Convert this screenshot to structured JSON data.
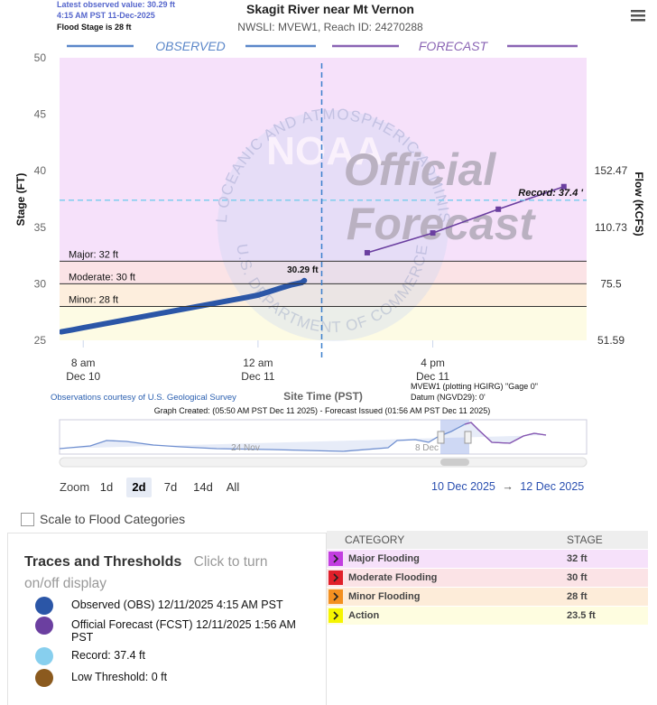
{
  "header": {
    "latest": "Latest observed value: 30.29 ft",
    "latest_time": "4:15 AM PST 11-Dec-2025",
    "flood_stage": "Flood Stage is 28 ft"
  },
  "chart_data": {
    "type": "line",
    "title": "Skagit River near Mt Vernon",
    "subtitle": "NWSLI: MVEW1, Reach ID: 24270288",
    "y_label": "Stage (FT)",
    "y2_label": "Flow (KCFS)",
    "x_label": "Site Time (PST)",
    "observed_label": "OBSERVED",
    "forecast_label": "FORECAST",
    "xlim": [
      "2025-12-10T05:50",
      "2025-12-12T06:05"
    ],
    "xticks": [
      {
        "value": "2025-12-10T08:00",
        "label": [
          "8 am",
          "Dec 10"
        ]
      },
      {
        "value": "2025-12-11T00:00",
        "label": [
          "12 am",
          "Dec 11"
        ]
      },
      {
        "value": "2025-12-11T16:00",
        "label": [
          "4 pm",
          "Dec 11"
        ]
      }
    ],
    "ylim": [
      25,
      50
    ],
    "yticks": [
      25,
      30,
      35,
      40,
      45,
      50
    ],
    "flow_ticks": [
      {
        "stage": 40,
        "flow": 152.47
      },
      {
        "stage": 35,
        "flow": 110.73
      },
      {
        "stage": 30,
        "flow": 75.5
      },
      {
        "stage": 25,
        "flow": 51.59
      }
    ],
    "plot_background": "#fdfbe4",
    "thresholds": [
      {
        "value": 32,
        "label": "Major: 32 ft",
        "band_color": "#f6e1fa"
      },
      {
        "value": 30,
        "label": "Moderate: 30 ft",
        "band_color": "#fbe3e6"
      },
      {
        "value": 28,
        "label": "Minor: 28 ft",
        "band_color": "#fdeedd"
      }
    ],
    "record": {
      "value": 37.4,
      "label": "Record: 37.4 '",
      "color": "#7fcdee"
    },
    "now": "2025-12-11T05:50",
    "series": [
      {
        "name": "Observed (OBS) 12/11/2025 4:15 AM PST",
        "color": "#2b56a7",
        "x": [
          "2025-12-10T06:00",
          "2025-12-10T07:00",
          "2025-12-10T08:00",
          "2025-12-10T09:00",
          "2025-12-10T10:00",
          "2025-12-10T11:00",
          "2025-12-10T12:00",
          "2025-12-10T13:00",
          "2025-12-10T14:00",
          "2025-12-10T15:00",
          "2025-12-10T16:00",
          "2025-12-10T17:00",
          "2025-12-10T18:00",
          "2025-12-10T19:00",
          "2025-12-10T20:00",
          "2025-12-10T21:00",
          "2025-12-10T22:00",
          "2025-12-10T23:00",
          "2025-12-11T00:00",
          "2025-12-11T01:00",
          "2025-12-11T02:00",
          "2025-12-11T03:00",
          "2025-12-11T04:00",
          "2025-12-11T04:15"
        ],
        "values": [
          25.75,
          25.93,
          26.11,
          26.29,
          26.47,
          26.65,
          26.83,
          27.01,
          27.19,
          27.37,
          27.55,
          27.73,
          27.91,
          28.09,
          28.27,
          28.45,
          28.63,
          28.81,
          29.0,
          29.3,
          29.6,
          29.9,
          30.1,
          30.29
        ],
        "last_label": "30.29 ft"
      },
      {
        "name": "Official Forecast (FCST) 12/11/2025 1:56 AM PST",
        "color": "#6b3fa0",
        "x": [
          "2025-12-11T10:00",
          "2025-12-11T16:00",
          "2025-12-11T22:00",
          "2025-12-12T04:00"
        ],
        "values": [
          32.75,
          34.5,
          36.6,
          38.6
        ]
      }
    ],
    "notes": {
      "credit": "Observations courtesy of U.S. Geological Survey",
      "gage": "MVEW1 (plotting HGIRG) \"Gage 0\"",
      "datum": "Datum (NGVD29): 0'",
      "created": "Graph Created: (05:50 AM PST Dec 11 2025) - Forecast Issued (01:56 AM PST Dec 11 2025)"
    }
  },
  "watermark": {
    "logo": "NOAA",
    "line1": "Official",
    "line2": "Forecast",
    "ring_top": "NATIONAL OCEANIC AND ATMOSPHERIC ADMINISTRATION",
    "ring_bottom": "U.S. DEPARTMENT OF COMMERCE"
  },
  "navigator": {
    "labels": [
      "24 Nov",
      "8 Dec"
    ]
  },
  "zoom": {
    "label": "Zoom",
    "buttons": [
      "1d",
      "2d",
      "7d",
      "14d",
      "All"
    ],
    "selected": 1,
    "from": "10 Dec 2025",
    "arrow": "→",
    "to": "12 Dec 2025"
  },
  "scale_option": "Scale to Flood Categories",
  "legend": {
    "title": "Traces and Thresholds",
    "hint": "Click to turn on/off display",
    "extra": [
      {
        "label": "Record: 37.4 ft",
        "color": "#87cfee"
      },
      {
        "label": "Low Threshold: 0 ft",
        "color": "#8b5a1e"
      }
    ]
  },
  "table": {
    "headers": [
      "CATEGORY",
      "STAGE"
    ],
    "rows": [
      {
        "category": "Major Flooding",
        "stage": "32 ft",
        "color": "#c23ee0",
        "bg": "#f6e1fa"
      },
      {
        "category": "Moderate Flooding",
        "stage": "30 ft",
        "color": "#e0202a",
        "bg": "#fbe3e6"
      },
      {
        "category": "Minor Flooding",
        "stage": "28 ft",
        "color": "#f39020",
        "bg": "#fdecd9"
      },
      {
        "category": "Action",
        "stage": "23.5 ft",
        "color": "#f5f500",
        "bg": "#fefde0"
      }
    ]
  }
}
